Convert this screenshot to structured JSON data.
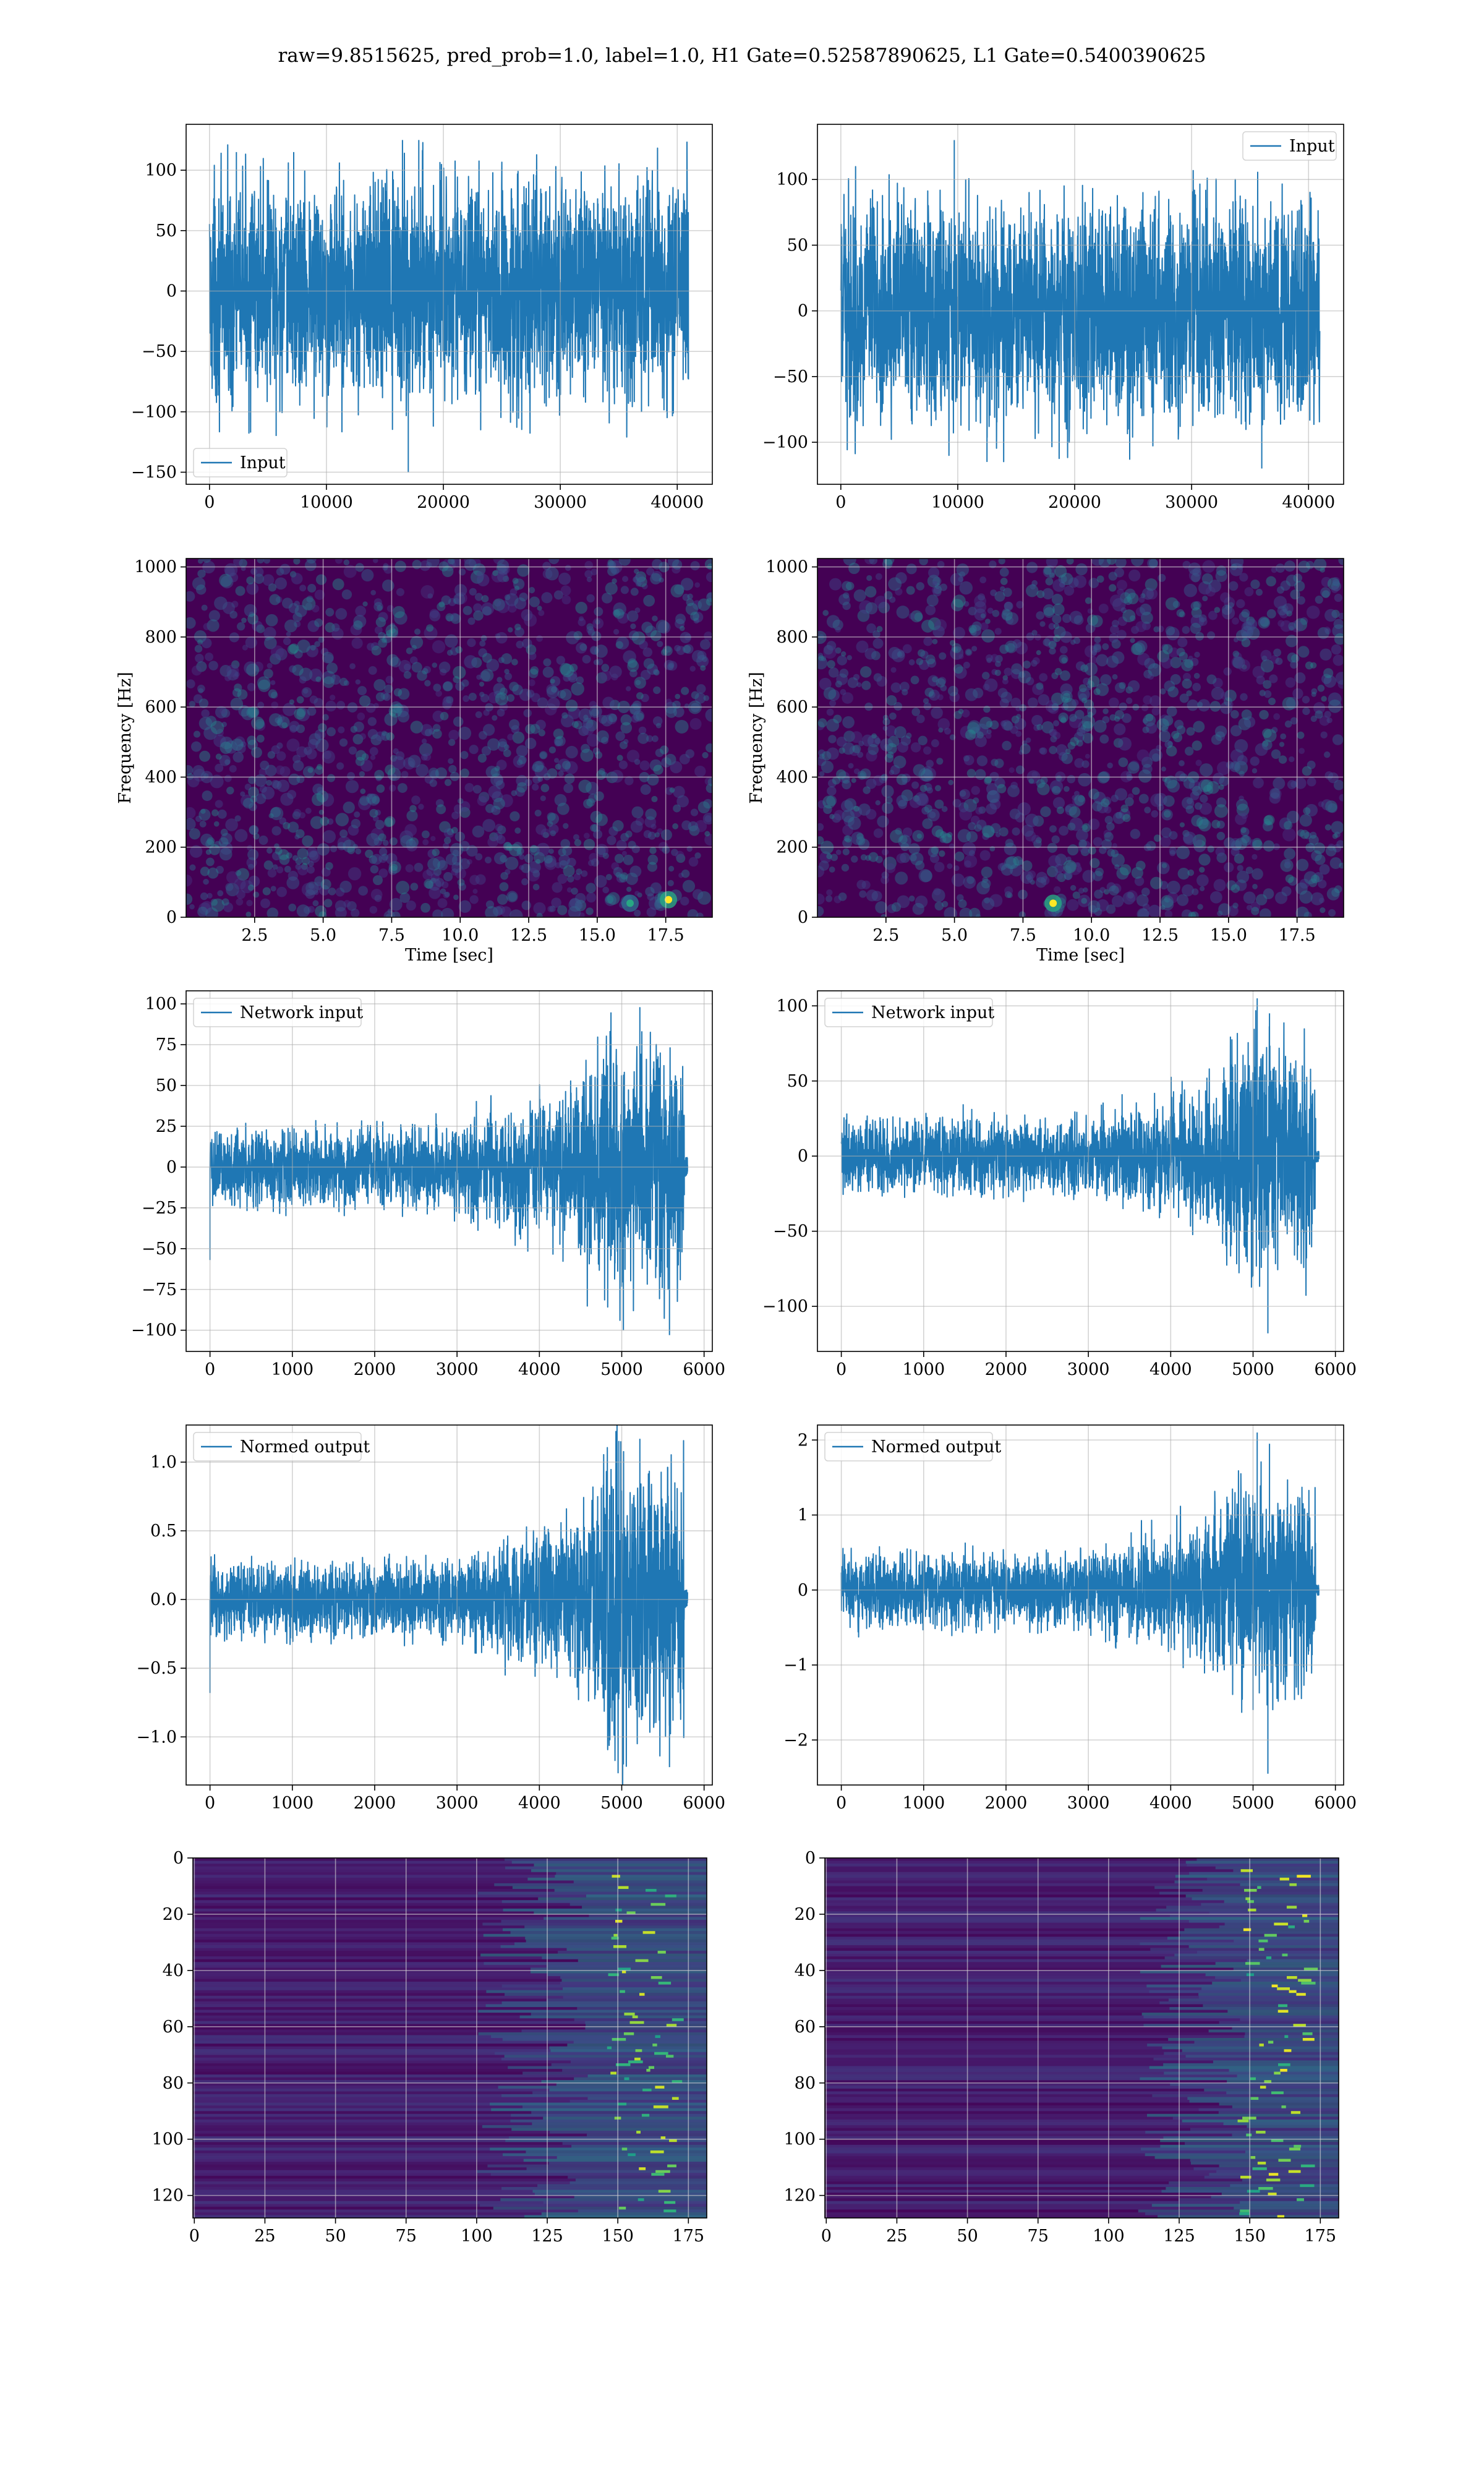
{
  "title": "raw=9.8515625, pred_prob=1.0, label=1.0, H1 Gate=0.52587890625, L1 Gate=0.5400390625",
  "colors": {
    "line": "#1f77b4",
    "grid": "#b0b0b0",
    "viridis_dark": "#440154",
    "viridis_blue": "#3b528b",
    "viridis_teal": "#21918c",
    "viridis_green": "#5ec962",
    "viridis_yellow": "#fde725"
  },
  "chart_data": [
    {
      "id": "input_h1",
      "type": "line",
      "series": [
        {
          "name": "Input"
        }
      ],
      "legend": "lower-left",
      "grid": true,
      "xlim": [
        -2000,
        43000
      ],
      "ylim": [
        -160,
        138
      ],
      "xticks": [
        0,
        10000,
        20000,
        30000,
        40000
      ],
      "yticks": [
        -150,
        -100,
        -50,
        0,
        50,
        100
      ],
      "signal": {
        "n_samples": 40960,
        "envelope": [
          [
            0,
            70
          ],
          [
            40960,
            70
          ]
        ],
        "peaks": [
          [
            17000,
            -150
          ],
          [
            16500,
            125
          ],
          [
            17900,
            125
          ],
          [
            7200,
            115
          ],
          [
            2300,
            115
          ],
          [
            5700,
            -120
          ]
        ]
      }
    },
    {
      "id": "input_l1",
      "type": "line",
      "series": [
        {
          "name": "Input"
        }
      ],
      "legend": "upper-right",
      "grid": true,
      "xlim": [
        -2000,
        43000
      ],
      "ylim": [
        -132,
        142
      ],
      "xticks": [
        0,
        10000,
        20000,
        30000,
        40000
      ],
      "yticks": [
        -100,
        -50,
        0,
        50,
        100
      ],
      "signal": {
        "n_samples": 40960,
        "envelope": [
          [
            0,
            65
          ],
          [
            40960,
            65
          ]
        ],
        "peaks": [
          [
            9700,
            130
          ],
          [
            36000,
            -120
          ],
          [
            12500,
            -115
          ]
        ]
      }
    },
    {
      "id": "spec_h1",
      "type": "heatmap",
      "colormap": "viridis",
      "grid": true,
      "xlabel": "Time [sec]",
      "ylabel": "Frequency [Hz]",
      "xlim": [
        0,
        19.2
      ],
      "ylim": [
        0,
        1024
      ],
      "xticks": [
        2.5,
        5.0,
        7.5,
        10.0,
        12.5,
        15.0,
        17.5
      ],
      "yticks": [
        0,
        200,
        400,
        600,
        800,
        1000
      ],
      "hot_spots": [
        [
          17.6,
          50,
          1.0
        ],
        [
          16.2,
          40,
          0.6
        ]
      ]
    },
    {
      "id": "spec_l1",
      "type": "heatmap",
      "colormap": "viridis",
      "grid": true,
      "xlabel": "Time [sec]",
      "ylabel": "Frequency [Hz]",
      "xlim": [
        0,
        19.2
      ],
      "ylim": [
        0,
        1024
      ],
      "xticks": [
        2.5,
        5.0,
        7.5,
        10.0,
        12.5,
        15.0,
        17.5
      ],
      "yticks": [
        0,
        200,
        400,
        600,
        800,
        1000
      ],
      "hot_spots": [
        [
          8.6,
          40,
          1.0
        ]
      ]
    },
    {
      "id": "network_input_h1",
      "type": "line",
      "series": [
        {
          "name": "Network input"
        }
      ],
      "legend": "upper-left",
      "grid": true,
      "xlim": [
        -290,
        6100
      ],
      "ylim": [
        -113,
        108
      ],
      "xticks": [
        0,
        1000,
        2000,
        3000,
        4000,
        5000,
        6000
      ],
      "yticks": [
        -100,
        -75,
        -50,
        -25,
        0,
        25,
        50,
        75,
        100
      ],
      "signal": {
        "n_samples": 5760,
        "envelope": [
          [
            0,
            18
          ],
          [
            3000,
            20
          ],
          [
            3300,
            25
          ],
          [
            4400,
            35
          ],
          [
            4600,
            55
          ],
          [
            5000,
            65
          ],
          [
            5500,
            60
          ],
          [
            5760,
            55
          ],
          [
            5800,
            6
          ]
        ],
        "peaks": [
          [
            0,
            -57
          ],
          [
            5220,
            98
          ],
          [
            5020,
            -100
          ],
          [
            5580,
            -103
          ],
          [
            4870,
            80
          ]
        ]
      }
    },
    {
      "id": "network_input_l1",
      "type": "line",
      "series": [
        {
          "name": "Network input"
        }
      ],
      "legend": "upper-left",
      "grid": true,
      "xlim": [
        -290,
        6100
      ],
      "ylim": [
        -130,
        110
      ],
      "xticks": [
        0,
        1000,
        2000,
        3000,
        4000,
        5000,
        6000
      ],
      "yticks": [
        -100,
        -50,
        0,
        50,
        100
      ],
      "signal": {
        "n_samples": 5760,
        "envelope": [
          [
            0,
            18
          ],
          [
            3000,
            20
          ],
          [
            3500,
            25
          ],
          [
            4400,
            35
          ],
          [
            4600,
            45
          ],
          [
            5000,
            60
          ],
          [
            5500,
            55
          ],
          [
            5760,
            50
          ],
          [
            5800,
            4
          ]
        ],
        "peaks": [
          [
            5050,
            105
          ],
          [
            5180,
            -118
          ],
          [
            5200,
            95
          ],
          [
            5000,
            -80
          ]
        ]
      }
    },
    {
      "id": "normed_output_h1",
      "type": "line",
      "series": [
        {
          "name": "Normed output"
        }
      ],
      "legend": "upper-left",
      "grid": true,
      "xlim": [
        -290,
        6100
      ],
      "ylim": [
        -1.35,
        1.27
      ],
      "xticks": [
        0,
        1000,
        2000,
        3000,
        4000,
        5000,
        6000
      ],
      "yticks": [
        -1.0,
        -0.5,
        0.0,
        0.5,
        1.0
      ],
      "signal": {
        "n_samples": 5760,
        "envelope": [
          [
            0,
            0.2
          ],
          [
            3000,
            0.22
          ],
          [
            3300,
            0.28
          ],
          [
            4400,
            0.4
          ],
          [
            4600,
            0.65
          ],
          [
            5000,
            0.8
          ],
          [
            5500,
            0.72
          ],
          [
            5760,
            0.65
          ],
          [
            5800,
            0.07
          ]
        ],
        "peaks": [
          [
            0,
            -0.68
          ],
          [
            5220,
            1.17
          ],
          [
            5020,
            -1.2
          ],
          [
            5580,
            -1.22
          ],
          [
            4870,
            0.95
          ]
        ]
      }
    },
    {
      "id": "normed_output_l1",
      "type": "line",
      "series": [
        {
          "name": "Normed output"
        }
      ],
      "legend": "upper-left",
      "grid": true,
      "xlim": [
        -290,
        6100
      ],
      "ylim": [
        -2.6,
        2.2
      ],
      "xticks": [
        0,
        1000,
        2000,
        3000,
        4000,
        5000,
        6000
      ],
      "yticks": [
        -2,
        -1,
        0,
        1,
        2
      ],
      "signal": {
        "n_samples": 5760,
        "envelope": [
          [
            0,
            0.35
          ],
          [
            3000,
            0.38
          ],
          [
            3500,
            0.5
          ],
          [
            4400,
            0.7
          ],
          [
            4600,
            0.9
          ],
          [
            5000,
            1.2
          ],
          [
            5500,
            1.1
          ],
          [
            5760,
            1.0
          ],
          [
            5800,
            0.07
          ]
        ],
        "peaks": [
          [
            5050,
            2.1
          ],
          [
            5180,
            -2.45
          ],
          [
            5200,
            1.95
          ],
          [
            5000,
            -1.6
          ]
        ]
      }
    },
    {
      "id": "features_h1",
      "type": "heatmap",
      "colormap": "viridis",
      "grid": true,
      "xlim": [
        -0.5,
        181.5
      ],
      "ylim": [
        128,
        0
      ],
      "xticks": [
        0,
        25,
        50,
        75,
        100,
        125,
        150,
        175
      ],
      "yticks": [
        0,
        20,
        40,
        60,
        80,
        100,
        120
      ],
      "activity_onset": 100
    },
    {
      "id": "features_l1",
      "type": "heatmap",
      "colormap": "viridis",
      "grid": true,
      "xlim": [
        -0.5,
        181.5
      ],
      "ylim": [
        128,
        0
      ],
      "xticks": [
        0,
        25,
        50,
        75,
        100,
        125,
        150,
        175
      ],
      "yticks": [
        0,
        20,
        40,
        60,
        80,
        100,
        120
      ],
      "activity_onset": 110
    }
  ]
}
